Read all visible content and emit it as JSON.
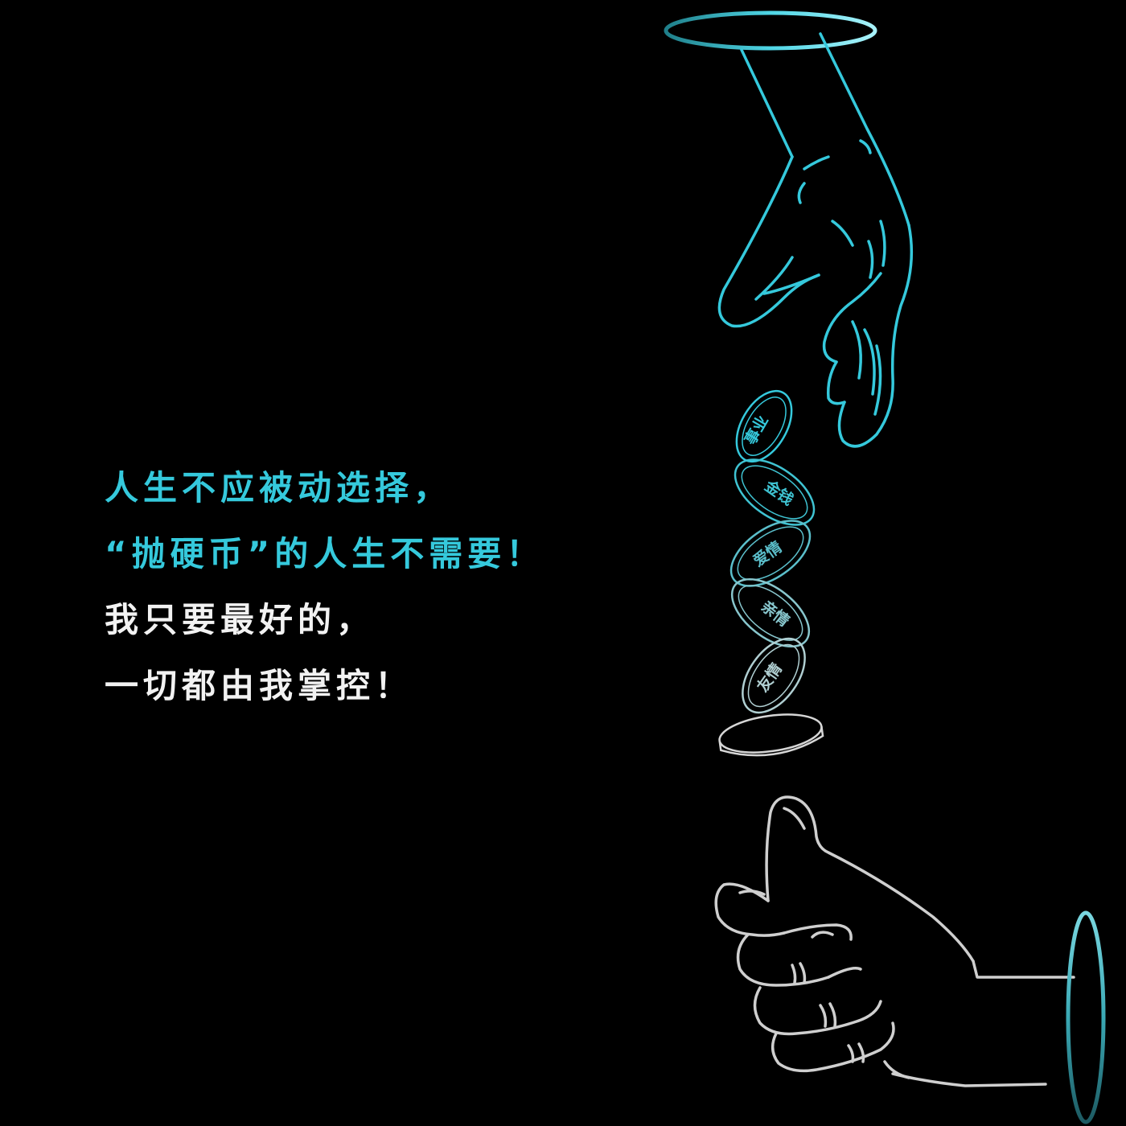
{
  "text": {
    "line1": "人生不应被动选择，",
    "line2": "“抛硬币”的人生不需要！",
    "line3": "我只要最好的，",
    "line4": "一切都由我掌控！"
  },
  "coins": [
    {
      "label": "事业"
    },
    {
      "label": "金钱"
    },
    {
      "label": "爱情"
    },
    {
      "label": "亲情"
    },
    {
      "label": "友情"
    }
  ],
  "colors": {
    "background": "#000000",
    "accent_cyan": "#35c9dc",
    "text_white": "#f2f2f2",
    "hand_grey": "#cfcfcf"
  },
  "icons": [
    "hand-dropping-icon",
    "hand-thumb-up-icon",
    "coin-icon",
    "portal-ring-icon"
  ]
}
